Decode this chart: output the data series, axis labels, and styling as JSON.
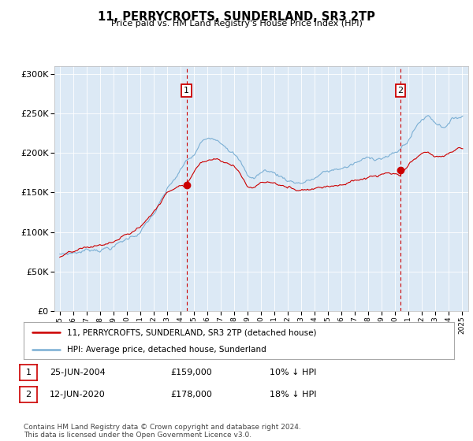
{
  "title": "11, PERRYCROFTS, SUNDERLAND, SR3 2TP",
  "subtitle": "Price paid vs. HM Land Registry's House Price Index (HPI)",
  "legend_line1": "11, PERRYCROFTS, SUNDERLAND, SR3 2TP (detached house)",
  "legend_line2": "HPI: Average price, detached house, Sunderland",
  "annotation1_date": "25-JUN-2004",
  "annotation1_price": "£159,000",
  "annotation1_pct": "10% ↓ HPI",
  "annotation1_year": 2004.47,
  "annotation1_value": 159000,
  "annotation2_date": "12-JUN-2020",
  "annotation2_price": "£178,000",
  "annotation2_pct": "18% ↓ HPI",
  "annotation2_year": 2020.44,
  "annotation2_value": 178000,
  "hpi_color": "#7bafd4",
  "price_color": "#cc0000",
  "dashed_color": "#cc0000",
  "background_color": "#dce9f5",
  "ylim": [
    0,
    310000
  ],
  "yticks": [
    0,
    50000,
    100000,
    150000,
    200000,
    250000,
    300000
  ],
  "footer": "Contains HM Land Registry data © Crown copyright and database right 2024.\nThis data is licensed under the Open Government Licence v3.0."
}
